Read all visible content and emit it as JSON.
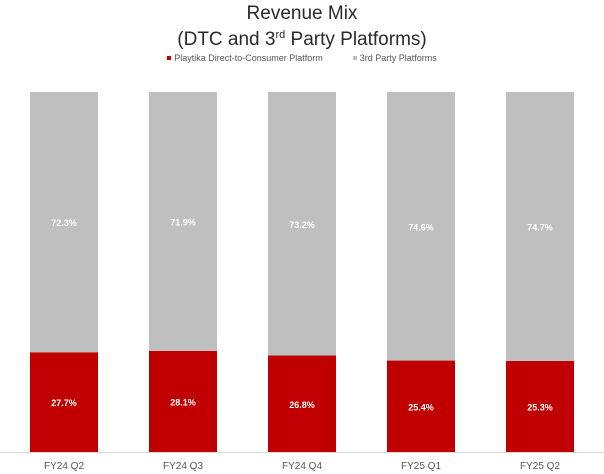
{
  "chart_data": {
    "type": "bar",
    "stacked": true,
    "title_line1": "Revenue Mix",
    "title_line2_pre": "(DTC and 3",
    "title_line2_sup": "rd",
    "title_line2_post": " Party Platforms)",
    "categories": [
      "FY24 Q2",
      "FY24 Q3",
      "FY24 Q4",
      "FY25 Q1",
      "FY25 Q2"
    ],
    "series": [
      {
        "name": "Playtika Direct-to-Consumer Platform",
        "color": "#c00000",
        "values": [
          27.7,
          28.1,
          26.8,
          25.4,
          25.3
        ],
        "labels": [
          "27.7%",
          "28.1%",
          "26.8%",
          "25.4%",
          "25.3%"
        ]
      },
      {
        "name": "3rd Party Platforms",
        "color": "#bfbfbf",
        "values": [
          72.3,
          71.9,
          73.2,
          74.6,
          74.7
        ],
        "labels": [
          "72.3%",
          "71.9%",
          "73.2%",
          "74.6%",
          "74.7%"
        ]
      }
    ],
    "ylim": [
      0,
      100
    ],
    "legend_position": "top-center",
    "grid": false
  }
}
